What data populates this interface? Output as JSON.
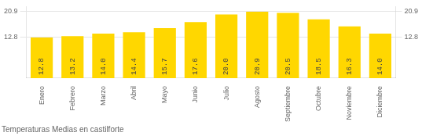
{
  "chart_data": {
    "type": "bar",
    "title": "Temperaturas Medias en castilforte",
    "categories": [
      "Enero",
      "Febrero",
      "Marzo",
      "Abril",
      "Mayo",
      "Junio",
      "Julio",
      "Agosto",
      "Septiembre",
      "Octubre",
      "Noviembre",
      "Diciembre"
    ],
    "values": [
      12.8,
      13.2,
      14.0,
      14.4,
      15.7,
      17.6,
      20.0,
      20.9,
      20.5,
      18.5,
      16.3,
      14.0
    ],
    "value_labels": [
      "12.8",
      "13.2",
      "14.0",
      "14.4",
      "15.7",
      "17.6",
      "20.0",
      "20.9",
      "20.5",
      "18.5",
      "16.3",
      "14.0"
    ],
    "color": "#FFD700",
    "ylim": [
      0,
      22.5
    ],
    "yticks": [
      12.8,
      20.9
    ],
    "y2lim": [
      0,
      22.5
    ],
    "y2ticks": [
      12.8,
      20.9
    ],
    "grid": true,
    "data_labels": true
  }
}
